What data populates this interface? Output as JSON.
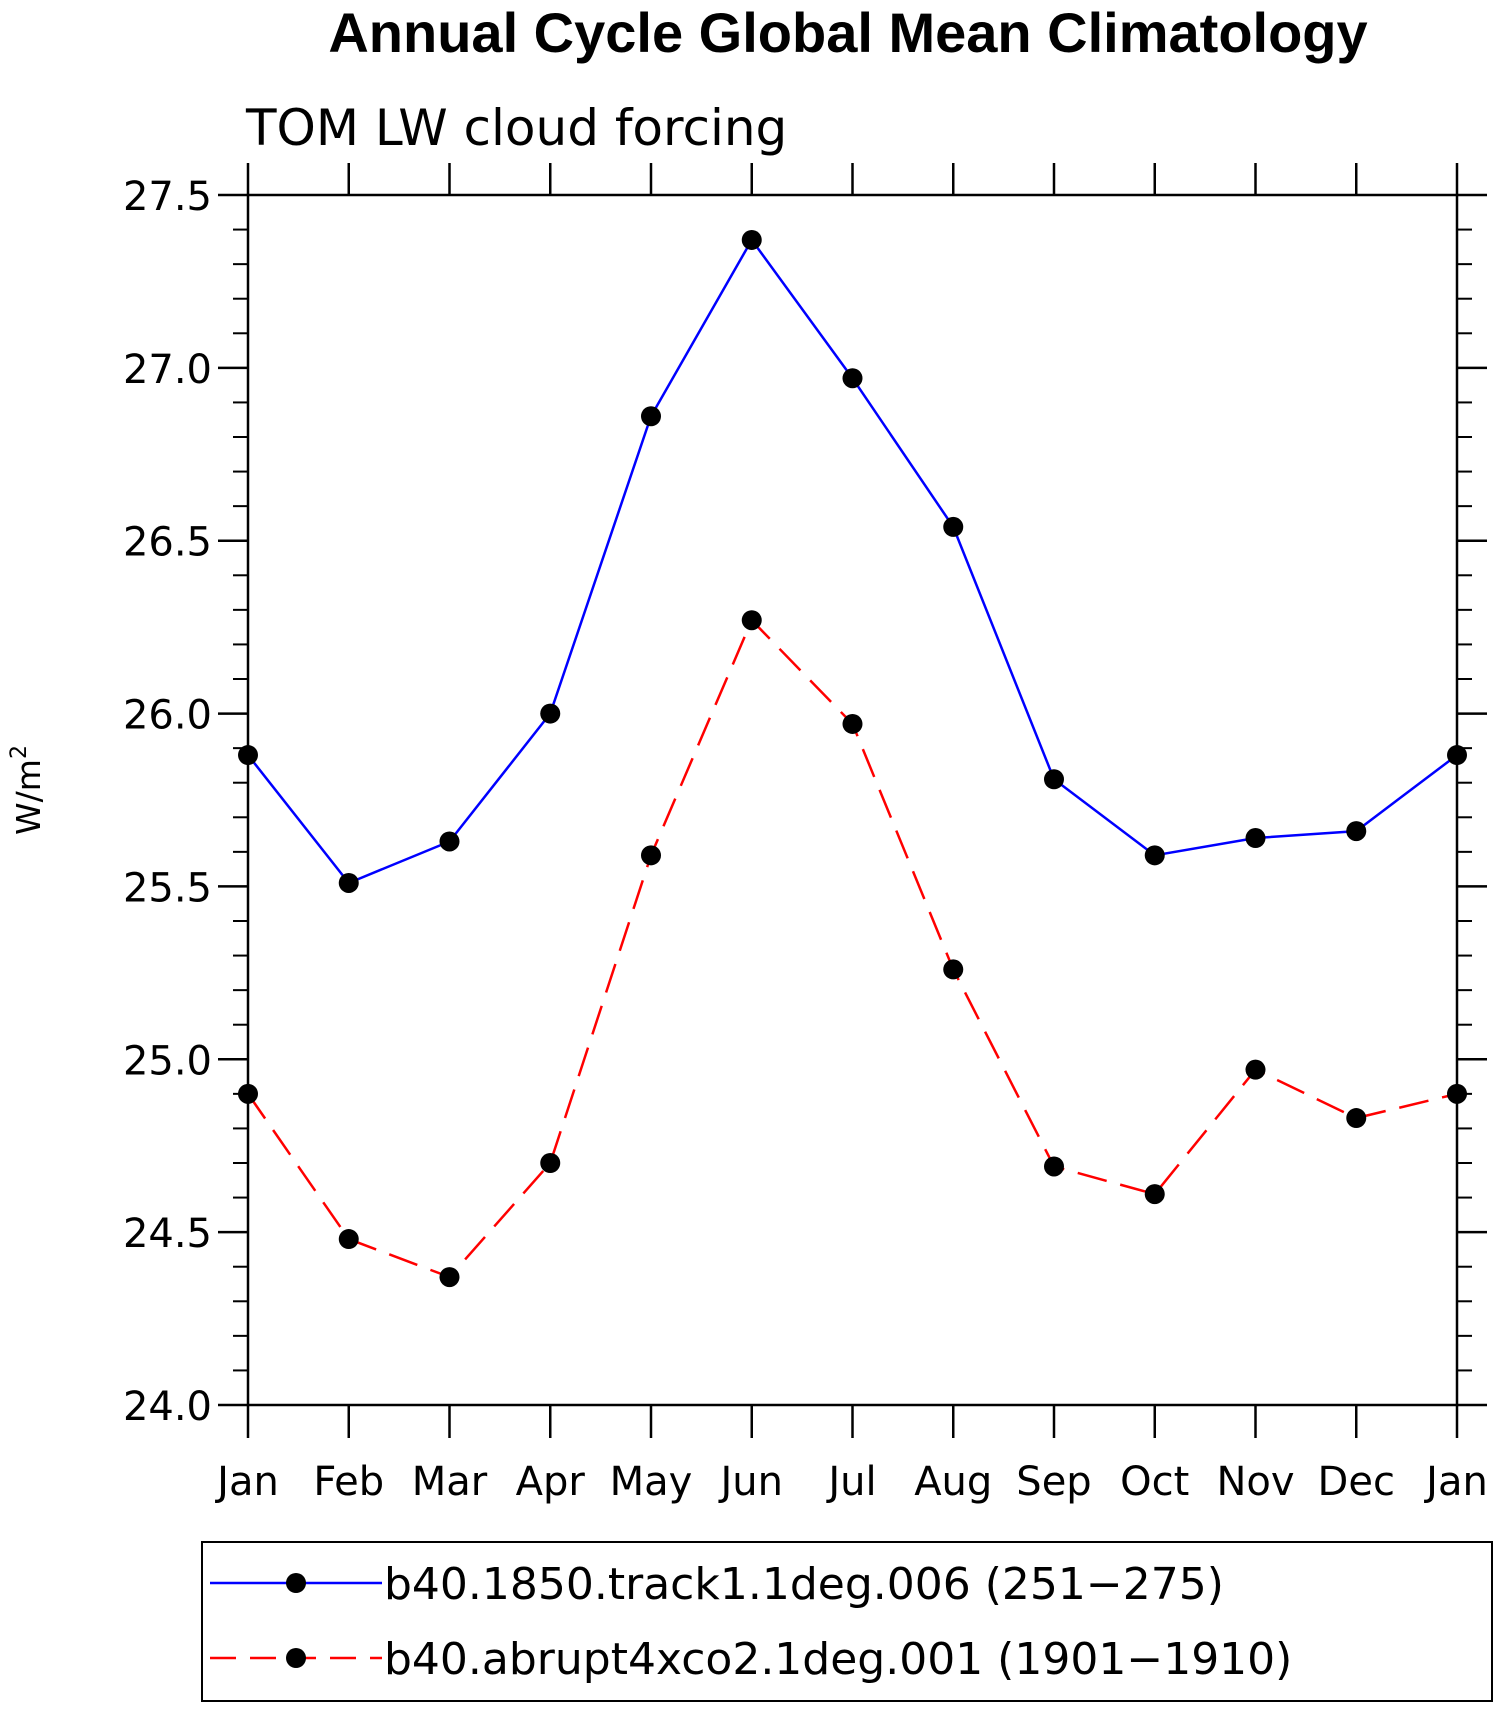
{
  "chart_data": {
    "type": "line",
    "title": "Annual Cycle Global Mean Climatology",
    "subtitle": "TOM LW cloud forcing",
    "xlabel": "",
    "ylabel": "W/m",
    "ylabel_superscript": "2",
    "categories": [
      "Jan",
      "Feb",
      "Mar",
      "Apr",
      "May",
      "Jun",
      "Jul",
      "Aug",
      "Sep",
      "Oct",
      "Nov",
      "Dec",
      "Jan"
    ],
    "ylim": [
      24.0,
      27.5
    ],
    "yticks": [
      24.0,
      24.5,
      25.0,
      25.5,
      26.0,
      26.5,
      27.0,
      27.5
    ],
    "ytick_labels": [
      "24.0",
      "24.5",
      "25.0",
      "25.5",
      "26.0",
      "26.5",
      "27.0",
      "27.5"
    ],
    "grid": false,
    "legend_position": "bottom",
    "series": [
      {
        "name": "b40.1850.track1.1deg.006 (251−275)",
        "color": "#0000ff",
        "line_style": "solid",
        "marker": "filled-circle",
        "values": [
          25.88,
          25.51,
          25.63,
          26.0,
          26.86,
          27.37,
          26.97,
          26.54,
          25.81,
          25.59,
          25.64,
          25.66,
          25.88
        ]
      },
      {
        "name": "b40.abrupt4xco2.1deg.001 (1901−1910)",
        "color": "#ff0000",
        "line_style": "dashed",
        "marker": "filled-circle",
        "values": [
          24.9,
          24.48,
          24.37,
          24.7,
          25.59,
          26.27,
          25.97,
          25.26,
          24.69,
          24.61,
          24.97,
          24.83,
          24.9
        ]
      }
    ]
  }
}
